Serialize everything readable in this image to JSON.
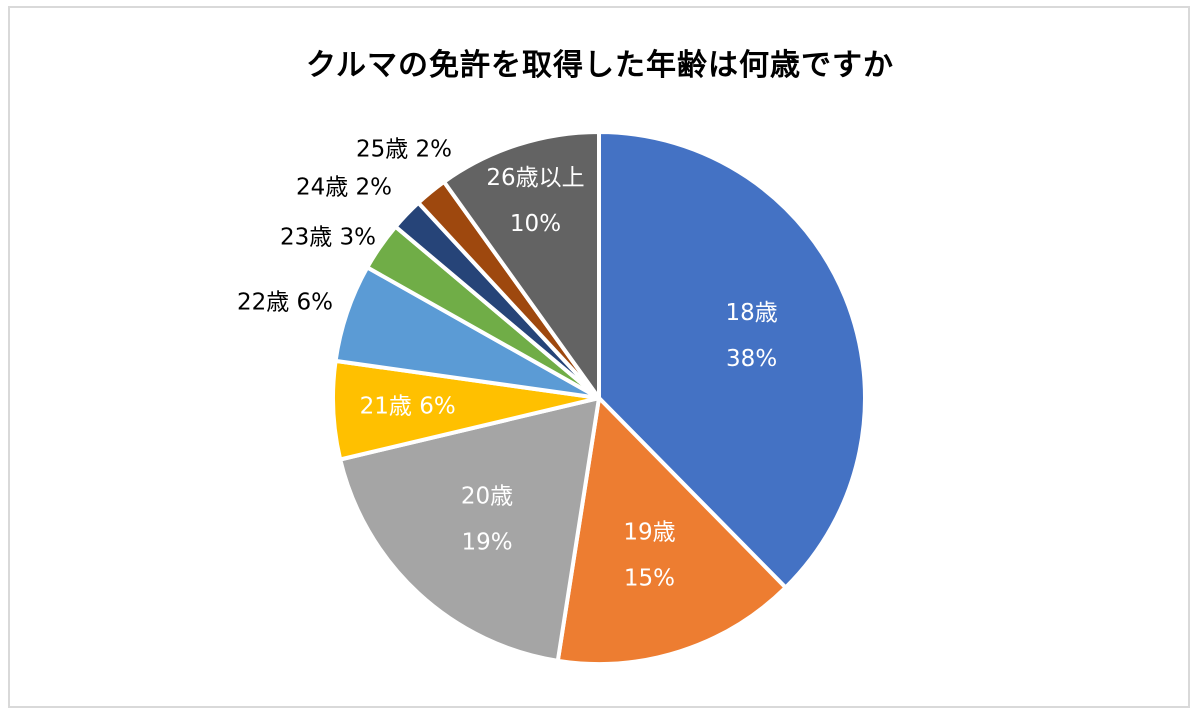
{
  "chart_data": {
    "type": "pie",
    "title": "クルマの免許を取得した年齢は何歳ですか",
    "slices": [
      {
        "label": "18歳",
        "value": 38,
        "value_label": "38%",
        "color": "#4472c4"
      },
      {
        "label": "19歳",
        "value": 15,
        "value_label": "15%",
        "color": "#ed7d31"
      },
      {
        "label": "20歳",
        "value": 19,
        "value_label": "19%",
        "color": "#a5a5a5"
      },
      {
        "label": "21歳",
        "value": 6,
        "value_label": "6%",
        "color": "#ffc000"
      },
      {
        "label": "22歳",
        "value": 6,
        "value_label": "6%",
        "color": "#5b9bd5"
      },
      {
        "label": "23歳",
        "value": 3,
        "value_label": "3%",
        "color": "#70ad47"
      },
      {
        "label": "24歳",
        "value": 2,
        "value_label": "2%",
        "color": "#264478"
      },
      {
        "label": "25歳",
        "value": 2,
        "value_label": "2%",
        "color": "#9e480e"
      },
      {
        "label": "26歳以上",
        "value": 10,
        "value_label": "10%",
        "color": "#636363"
      }
    ],
    "legend": "none",
    "start_angle": "12 o'clock",
    "direction": "clockwise"
  }
}
